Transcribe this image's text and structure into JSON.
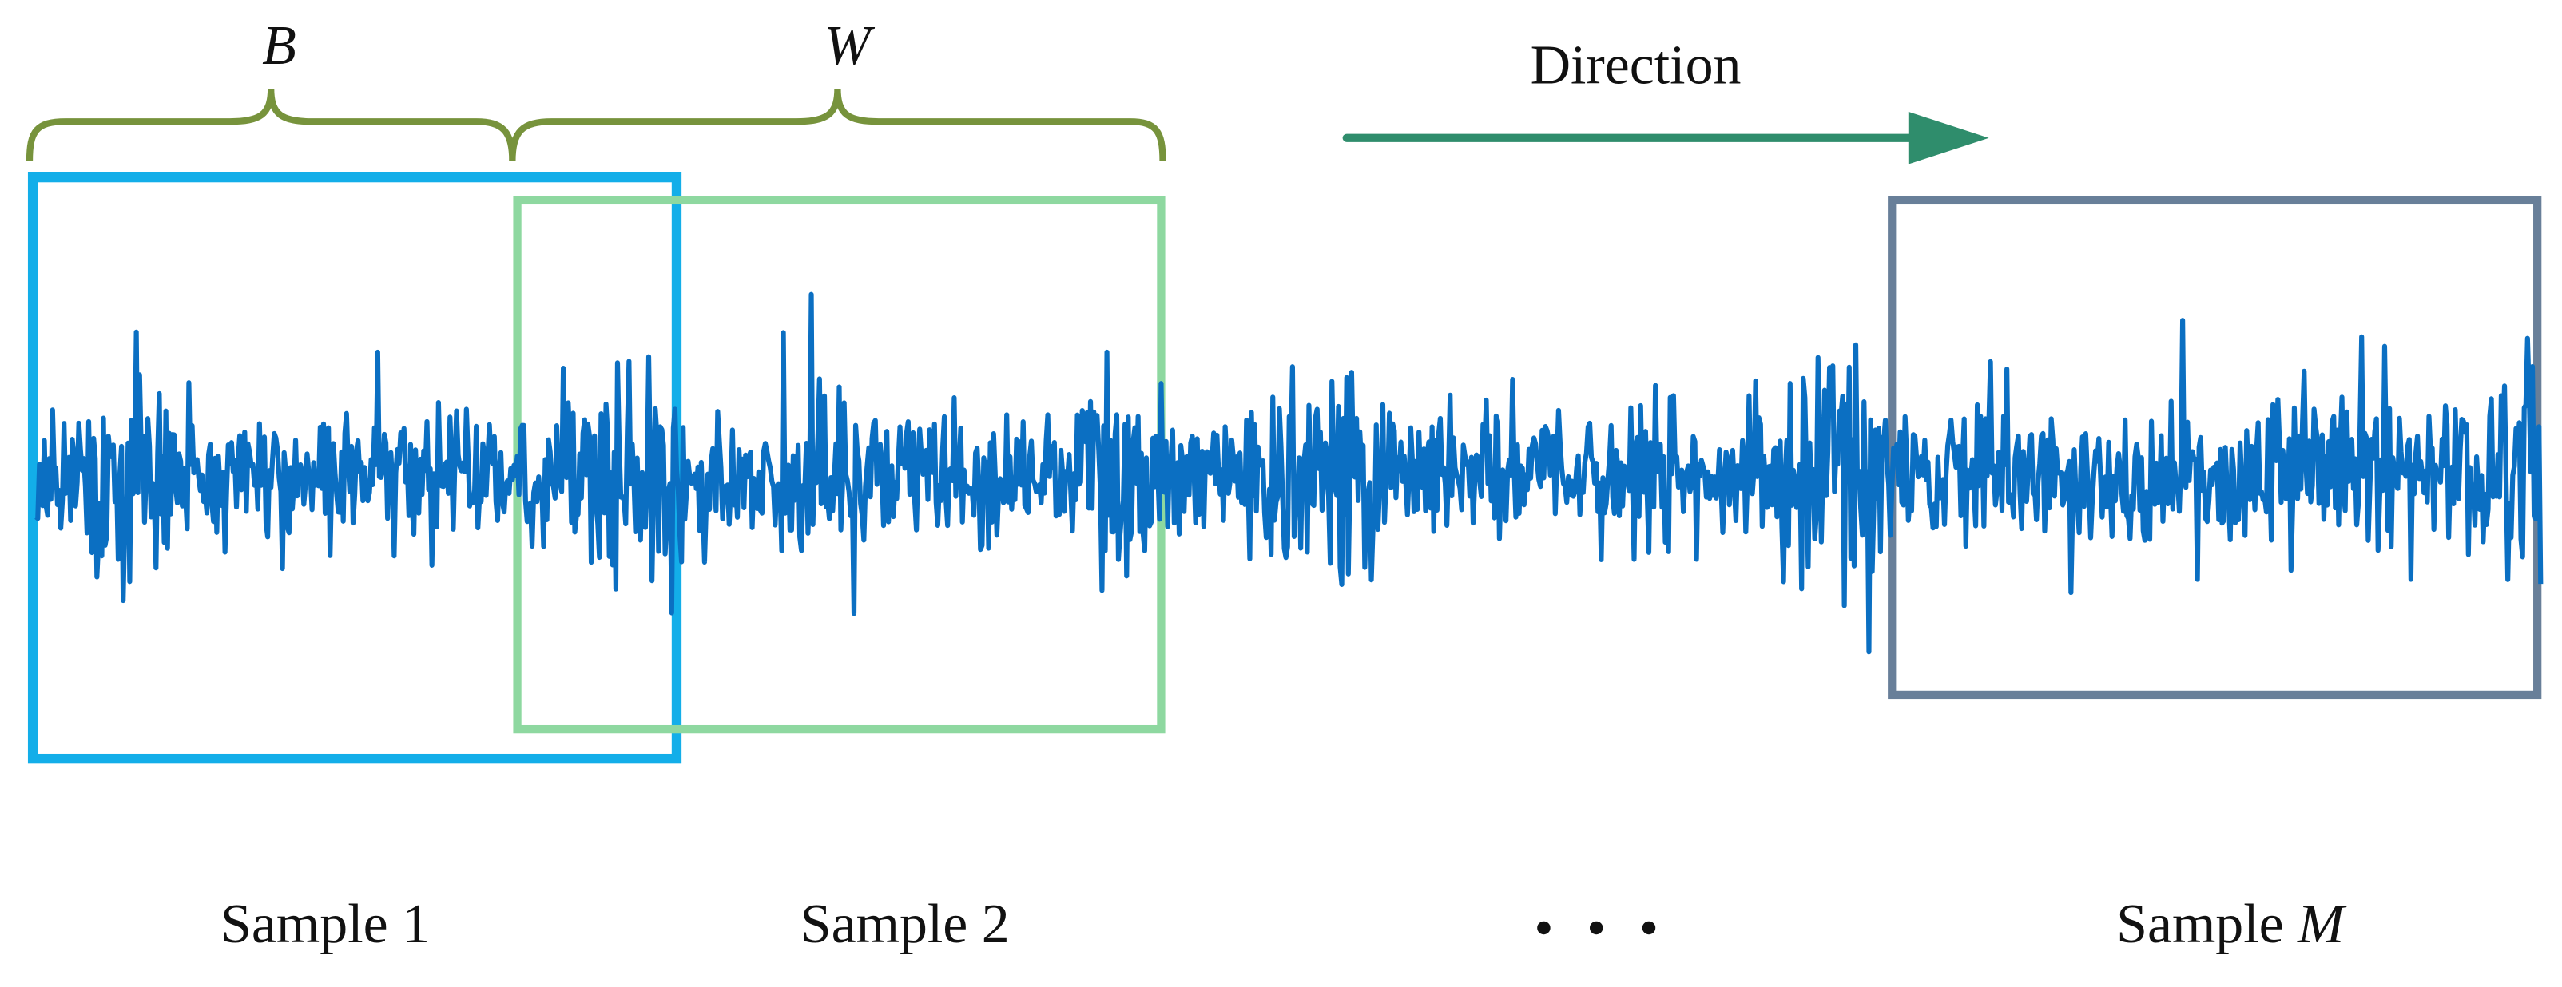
{
  "braces": [
    {
      "label": "B"
    },
    {
      "label": "W"
    }
  ],
  "direction": "Direction",
  "samples": [
    {
      "name": "Sample",
      "index": "1"
    },
    {
      "name": "Sample",
      "index": "2"
    },
    {
      "name": "Sample",
      "index": "M"
    }
  ]
}
